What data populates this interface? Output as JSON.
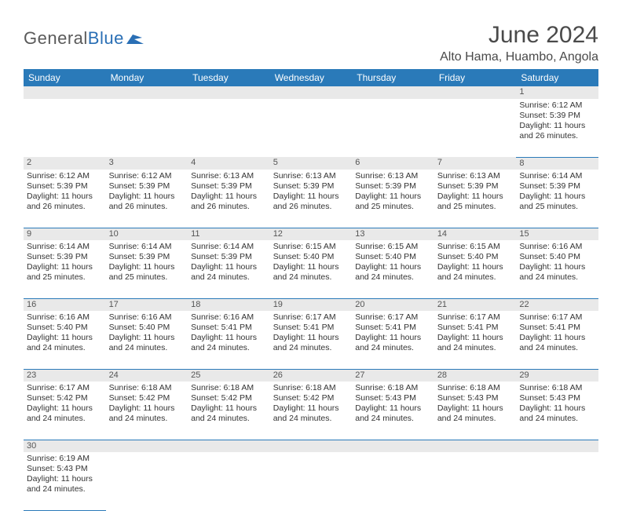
{
  "logo": {
    "text1": "General",
    "text2": "Blue"
  },
  "title": "June 2024",
  "location": "Alto Hama, Huambo, Angola",
  "colors": {
    "header_bg": "#2a7ab9",
    "header_fg": "#ffffff",
    "daynum_bg": "#e9e9e9",
    "border": "#2a7ab9",
    "logo_gray": "#5a5a5a",
    "logo_blue": "#2a6fb5",
    "text": "#333333"
  },
  "weekdays": [
    "Sunday",
    "Monday",
    "Tuesday",
    "Wednesday",
    "Thursday",
    "Friday",
    "Saturday"
  ],
  "weeks": [
    [
      null,
      null,
      null,
      null,
      null,
      null,
      {
        "n": "1",
        "sr": "Sunrise: 6:12 AM",
        "ss": "Sunset: 5:39 PM",
        "dl": "Daylight: 11 hours and 26 minutes."
      }
    ],
    [
      {
        "n": "2",
        "sr": "Sunrise: 6:12 AM",
        "ss": "Sunset: 5:39 PM",
        "dl": "Daylight: 11 hours and 26 minutes."
      },
      {
        "n": "3",
        "sr": "Sunrise: 6:12 AM",
        "ss": "Sunset: 5:39 PM",
        "dl": "Daylight: 11 hours and 26 minutes."
      },
      {
        "n": "4",
        "sr": "Sunrise: 6:13 AM",
        "ss": "Sunset: 5:39 PM",
        "dl": "Daylight: 11 hours and 26 minutes."
      },
      {
        "n": "5",
        "sr": "Sunrise: 6:13 AM",
        "ss": "Sunset: 5:39 PM",
        "dl": "Daylight: 11 hours and 26 minutes."
      },
      {
        "n": "6",
        "sr": "Sunrise: 6:13 AM",
        "ss": "Sunset: 5:39 PM",
        "dl": "Daylight: 11 hours and 25 minutes."
      },
      {
        "n": "7",
        "sr": "Sunrise: 6:13 AM",
        "ss": "Sunset: 5:39 PM",
        "dl": "Daylight: 11 hours and 25 minutes."
      },
      {
        "n": "8",
        "sr": "Sunrise: 6:14 AM",
        "ss": "Sunset: 5:39 PM",
        "dl": "Daylight: 11 hours and 25 minutes."
      }
    ],
    [
      {
        "n": "9",
        "sr": "Sunrise: 6:14 AM",
        "ss": "Sunset: 5:39 PM",
        "dl": "Daylight: 11 hours and 25 minutes."
      },
      {
        "n": "10",
        "sr": "Sunrise: 6:14 AM",
        "ss": "Sunset: 5:39 PM",
        "dl": "Daylight: 11 hours and 25 minutes."
      },
      {
        "n": "11",
        "sr": "Sunrise: 6:14 AM",
        "ss": "Sunset: 5:39 PM",
        "dl": "Daylight: 11 hours and 24 minutes."
      },
      {
        "n": "12",
        "sr": "Sunrise: 6:15 AM",
        "ss": "Sunset: 5:40 PM",
        "dl": "Daylight: 11 hours and 24 minutes."
      },
      {
        "n": "13",
        "sr": "Sunrise: 6:15 AM",
        "ss": "Sunset: 5:40 PM",
        "dl": "Daylight: 11 hours and 24 minutes."
      },
      {
        "n": "14",
        "sr": "Sunrise: 6:15 AM",
        "ss": "Sunset: 5:40 PM",
        "dl": "Daylight: 11 hours and 24 minutes."
      },
      {
        "n": "15",
        "sr": "Sunrise: 6:16 AM",
        "ss": "Sunset: 5:40 PM",
        "dl": "Daylight: 11 hours and 24 minutes."
      }
    ],
    [
      {
        "n": "16",
        "sr": "Sunrise: 6:16 AM",
        "ss": "Sunset: 5:40 PM",
        "dl": "Daylight: 11 hours and 24 minutes."
      },
      {
        "n": "17",
        "sr": "Sunrise: 6:16 AM",
        "ss": "Sunset: 5:40 PM",
        "dl": "Daylight: 11 hours and 24 minutes."
      },
      {
        "n": "18",
        "sr": "Sunrise: 6:16 AM",
        "ss": "Sunset: 5:41 PM",
        "dl": "Daylight: 11 hours and 24 minutes."
      },
      {
        "n": "19",
        "sr": "Sunrise: 6:17 AM",
        "ss": "Sunset: 5:41 PM",
        "dl": "Daylight: 11 hours and 24 minutes."
      },
      {
        "n": "20",
        "sr": "Sunrise: 6:17 AM",
        "ss": "Sunset: 5:41 PM",
        "dl": "Daylight: 11 hours and 24 minutes."
      },
      {
        "n": "21",
        "sr": "Sunrise: 6:17 AM",
        "ss": "Sunset: 5:41 PM",
        "dl": "Daylight: 11 hours and 24 minutes."
      },
      {
        "n": "22",
        "sr": "Sunrise: 6:17 AM",
        "ss": "Sunset: 5:41 PM",
        "dl": "Daylight: 11 hours and 24 minutes."
      }
    ],
    [
      {
        "n": "23",
        "sr": "Sunrise: 6:17 AM",
        "ss": "Sunset: 5:42 PM",
        "dl": "Daylight: 11 hours and 24 minutes."
      },
      {
        "n": "24",
        "sr": "Sunrise: 6:18 AM",
        "ss": "Sunset: 5:42 PM",
        "dl": "Daylight: 11 hours and 24 minutes."
      },
      {
        "n": "25",
        "sr": "Sunrise: 6:18 AM",
        "ss": "Sunset: 5:42 PM",
        "dl": "Daylight: 11 hours and 24 minutes."
      },
      {
        "n": "26",
        "sr": "Sunrise: 6:18 AM",
        "ss": "Sunset: 5:42 PM",
        "dl": "Daylight: 11 hours and 24 minutes."
      },
      {
        "n": "27",
        "sr": "Sunrise: 6:18 AM",
        "ss": "Sunset: 5:43 PM",
        "dl": "Daylight: 11 hours and 24 minutes."
      },
      {
        "n": "28",
        "sr": "Sunrise: 6:18 AM",
        "ss": "Sunset: 5:43 PM",
        "dl": "Daylight: 11 hours and 24 minutes."
      },
      {
        "n": "29",
        "sr": "Sunrise: 6:18 AM",
        "ss": "Sunset: 5:43 PM",
        "dl": "Daylight: 11 hours and 24 minutes."
      }
    ],
    [
      {
        "n": "30",
        "sr": "Sunrise: 6:19 AM",
        "ss": "Sunset: 5:43 PM",
        "dl": "Daylight: 11 hours and 24 minutes."
      },
      null,
      null,
      null,
      null,
      null,
      null
    ]
  ]
}
